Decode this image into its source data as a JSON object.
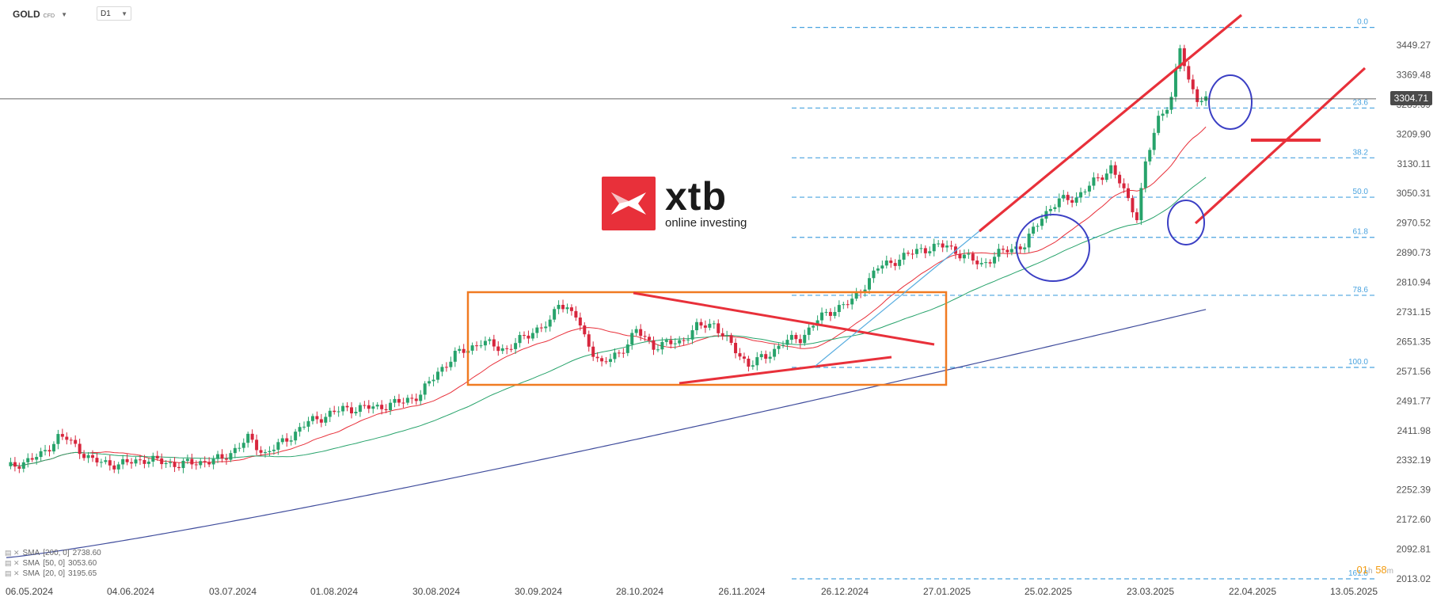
{
  "toolbar": {
    "symbol": "GOLD",
    "symbol_type": "CFD",
    "timeframe": "D1"
  },
  "logo": {
    "brand": "xtb",
    "tagline": "online investing",
    "color": "#e8303a"
  },
  "current_price": "3304.71",
  "timer": {
    "hours": "01",
    "hours_unit": "h",
    "minutes": "58",
    "minutes_unit": "m"
  },
  "indicators": [
    {
      "label": "SMA",
      "params": "[200, 0]",
      "value": "2738.60",
      "color": "#3f4c9c"
    },
    {
      "label": "SMA",
      "params": "[50, 0]",
      "value": "3053.60",
      "color": "#27a36b"
    },
    {
      "label": "SMA",
      "params": "[20, 0]",
      "value": "3195.65",
      "color": "#e8303a"
    }
  ],
  "chart_data": {
    "type": "candlestick",
    "instrument": "GOLD",
    "timeframe": "D1",
    "y_axis_ticks": [
      "3449.27",
      "3369.48",
      "3289.69",
      "3209.90",
      "3130.11",
      "3050.31",
      "2970.52",
      "2890.73",
      "2810.94",
      "2731.15",
      "2651.35",
      "2571.56",
      "2491.77",
      "2411.98",
      "2332.19",
      "2252.39",
      "2172.60",
      "2092.81",
      "2013.02"
    ],
    "x_axis_ticks": [
      "06.05.2024",
      "04.06.2024",
      "03.07.2024",
      "01.08.2024",
      "30.08.2024",
      "30.09.2024",
      "28.10.2024",
      "26.11.2024",
      "26.12.2024",
      "27.01.2025",
      "25.02.2025",
      "23.03.2025",
      "22.04.2025",
      "13.05.2025"
    ],
    "fibonacci": [
      {
        "level": "0.0",
        "price": 3497
      },
      {
        "level": "23.6",
        "price": 3280
      },
      {
        "level": "38.2",
        "price": 3146
      },
      {
        "level": "50.0",
        "price": 3040
      },
      {
        "level": "61.8",
        "price": 2932
      },
      {
        "level": "78.6",
        "price": 2776
      },
      {
        "level": "100.0",
        "price": 2582
      },
      {
        "level": "161.8",
        "price": 2013
      }
    ],
    "last_price": 3304.71,
    "colors": {
      "up": "#27a36b",
      "down": "#d7263d",
      "fib": "#4aa3df",
      "annotation": "#e8303a",
      "box": "#f07b22",
      "circle": "#3b3fc4"
    }
  }
}
